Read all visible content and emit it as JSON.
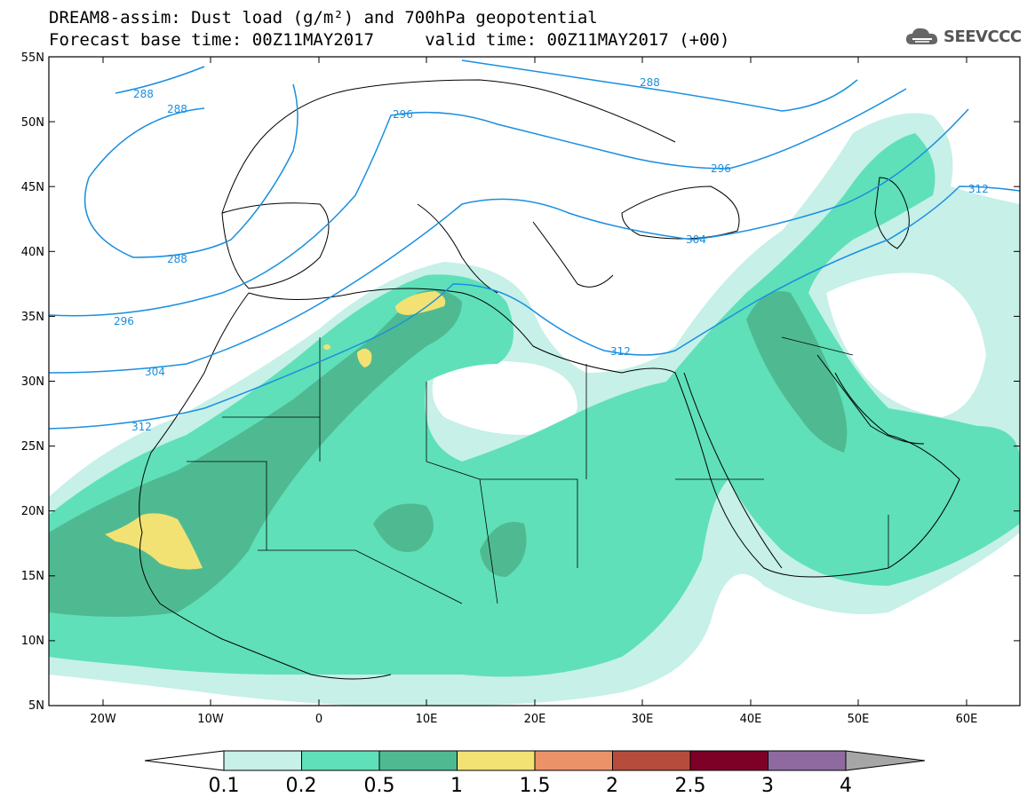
{
  "header": {
    "title_line1": "DREAM8-assim: Dust load (g/m²) and 700hPa geopotential",
    "title_line2": "Forecast base time: 00Z11MAY2017     valid time: 00Z11MAY2017 (+00)"
  },
  "logo": {
    "text": "SEEVCCC",
    "icon": "cloud-logo-icon"
  },
  "map": {
    "lat_labels": [
      "55N",
      "50N",
      "45N",
      "40N",
      "35N",
      "30N",
      "25N",
      "20N",
      "15N",
      "10N",
      "5N"
    ],
    "lon_labels": [
      "20W",
      "10W",
      "0",
      "10E",
      "20E",
      "30E",
      "40E",
      "50E",
      "60E"
    ],
    "isolines": {
      "color": "#1a8fe0",
      "labels": [
        "288",
        "288",
        "288",
        "288",
        "296",
        "296",
        "304",
        "304",
        "312",
        "312",
        "296",
        "312"
      ]
    },
    "coastline_color": "#000000"
  },
  "colorbar": {
    "colors": [
      "#c6f0e8",
      "#5fe0b8",
      "#4fba92",
      "#f2e273",
      "#ec9268",
      "#b64d3c",
      "#7d0026",
      "#8e6aa1",
      "#a6a6a6"
    ],
    "tick_labels": [
      "0.1",
      "0.2",
      "0.5",
      "1",
      "1.5",
      "2",
      "2.5",
      "3",
      "4"
    ]
  }
}
